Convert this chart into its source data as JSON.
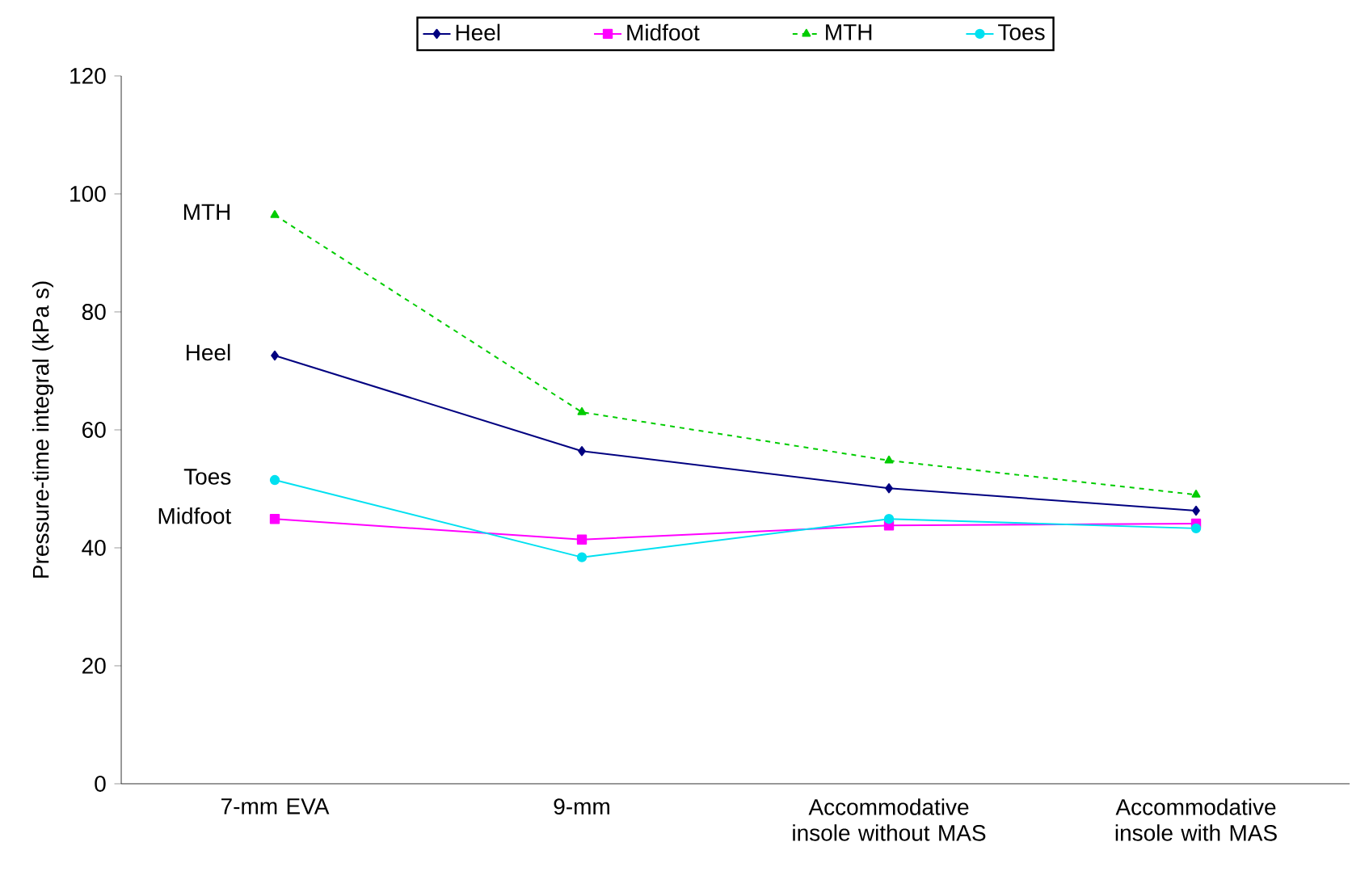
{
  "chart_data": {
    "type": "line",
    "ylabel": "Pressure-time integral (kPa s)",
    "categories": [
      "7-mm EVA",
      "9-mm",
      "Accommodative insole without MAS",
      "Accommodative insole with MAS"
    ],
    "series": [
      {
        "name": "Heel",
        "color": "#000080",
        "marker": "diamond",
        "line_style": "solid",
        "values": [
          72.6,
          56.4,
          50.1,
          46.3
        ]
      },
      {
        "name": "Midfoot",
        "color": "#ff00ff",
        "marker": "square",
        "line_style": "solid",
        "values": [
          44.9,
          41.4,
          43.8,
          44.1
        ]
      },
      {
        "name": "MTH",
        "color": "#00cc00",
        "marker": "triangle",
        "line_style": "dashed",
        "values": [
          96.4,
          63,
          54.8,
          49
        ]
      },
      {
        "name": "Toes",
        "color": "#00e0f0",
        "marker": "circle",
        "line_style": "solid",
        "values": [
          51.5,
          38.4,
          44.9,
          43.3
        ]
      }
    ],
    "annotations": [
      {
        "text": "MTH",
        "x": "7-mm EVA",
        "y": 96.4
      },
      {
        "text": "Heel",
        "x": "7-mm EVA",
        "y": 72.6
      },
      {
        "text": "Toes",
        "x": "7-mm EVA",
        "y": 51.5
      },
      {
        "text": "Midfoot",
        "x": "7-mm EVA",
        "y": 44.9
      }
    ],
    "ylim": [
      0,
      120
    ],
    "yticks": [
      0,
      20,
      40,
      60,
      80,
      100,
      120
    ],
    "grid": false,
    "legend": "top"
  }
}
